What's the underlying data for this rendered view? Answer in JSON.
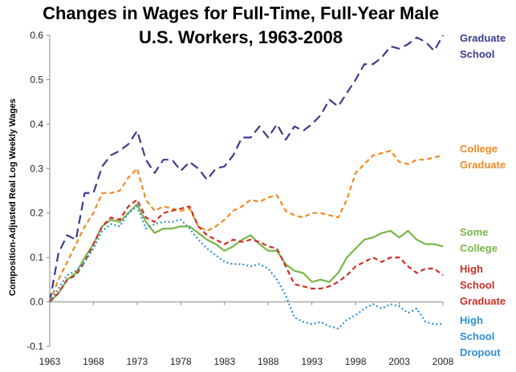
{
  "chart_data": {
    "type": "line",
    "title": "Changes in Wages for Full-Time, Full-Year Male U.S. Workers, 1963-2008",
    "title_lines": [
      "Changes in Wages for Full-Time, Full-Year Male",
      "U.S. Workers, 1963-2008"
    ],
    "xlabel": "",
    "ylabel": "Composition-Adjusted Real Log Weekly Wages",
    "xlim": [
      1963,
      2008
    ],
    "ylim": [
      -0.1,
      0.6
    ],
    "x_ticks": [
      "1963",
      "1968",
      "1973",
      "1978",
      "1983",
      "1988",
      "1993",
      "1998",
      "2003",
      "2008"
    ],
    "y_ticks": [
      "0.6",
      "0.5",
      "0.4",
      "0.3",
      "0.2",
      "0.1",
      "0.0",
      "-0.1"
    ],
    "grid": false,
    "legend_placement": "right",
    "x": [
      1963,
      1964,
      1965,
      1966,
      1967,
      1968,
      1969,
      1970,
      1971,
      1972,
      1973,
      1974,
      1975,
      1976,
      1977,
      1978,
      1979,
      1980,
      1981,
      1982,
      1983,
      1984,
      1985,
      1986,
      1987,
      1988,
      1989,
      1990,
      1991,
      1992,
      1993,
      1994,
      1995,
      1996,
      1997,
      1998,
      1999,
      2000,
      2001,
      2002,
      2003,
      2004,
      2005,
      2006,
      2007,
      2008
    ],
    "series": [
      {
        "name": "Graduate School",
        "label_lines": [
          "Graduate",
          "School"
        ],
        "color": "#3a3c8f",
        "dash": "long-dash",
        "values": [
          0.0,
          0.11,
          0.15,
          0.14,
          0.245,
          0.245,
          0.305,
          0.33,
          0.34,
          0.355,
          0.385,
          0.32,
          0.29,
          0.32,
          0.32,
          0.295,
          0.315,
          0.3,
          0.275,
          0.3,
          0.305,
          0.33,
          0.37,
          0.37,
          0.395,
          0.37,
          0.4,
          0.365,
          0.395,
          0.385,
          0.4,
          0.42,
          0.455,
          0.44,
          0.47,
          0.5,
          0.535,
          0.535,
          0.55,
          0.575,
          0.57,
          0.58,
          0.595,
          0.585,
          0.565,
          0.6
        ]
      },
      {
        "name": "College Graduate",
        "label_lines": [
          "College",
          "Graduate"
        ],
        "color": "#f08a24",
        "dash": "dash",
        "values": [
          0.0,
          0.05,
          0.09,
          0.13,
          0.17,
          0.2,
          0.245,
          0.245,
          0.25,
          0.28,
          0.3,
          0.23,
          0.205,
          0.215,
          0.21,
          0.205,
          0.21,
          0.17,
          0.16,
          0.17,
          0.185,
          0.205,
          0.215,
          0.23,
          0.225,
          0.235,
          0.24,
          0.205,
          0.195,
          0.19,
          0.2,
          0.2,
          0.195,
          0.19,
          0.23,
          0.29,
          0.31,
          0.33,
          0.335,
          0.34,
          0.315,
          0.31,
          0.32,
          0.32,
          0.325,
          0.33
        ]
      },
      {
        "name": "Some College",
        "label_lines": [
          "Some",
          "College"
        ],
        "color": "#7ab648",
        "dash": "solid",
        "values": [
          0.0,
          0.02,
          0.05,
          0.065,
          0.1,
          0.13,
          0.17,
          0.185,
          0.18,
          0.2,
          0.22,
          0.18,
          0.155,
          0.165,
          0.165,
          0.17,
          0.17,
          0.155,
          0.14,
          0.13,
          0.115,
          0.125,
          0.14,
          0.15,
          0.13,
          0.115,
          0.115,
          0.085,
          0.07,
          0.065,
          0.045,
          0.05,
          0.045,
          0.065,
          0.1,
          0.12,
          0.14,
          0.145,
          0.155,
          0.16,
          0.145,
          0.16,
          0.14,
          0.13,
          0.13,
          0.125
        ]
      },
      {
        "name": "High School Graduate",
        "label_lines": [
          "High",
          "School",
          "Graduate"
        ],
        "color": "#cc2f26",
        "dash": "dash",
        "values": [
          0.0,
          0.02,
          0.05,
          0.06,
          0.09,
          0.13,
          0.17,
          0.19,
          0.185,
          0.215,
          0.23,
          0.19,
          0.18,
          0.2,
          0.205,
          0.21,
          0.215,
          0.17,
          0.15,
          0.14,
          0.13,
          0.14,
          0.135,
          0.14,
          0.135,
          0.125,
          0.12,
          0.08,
          0.04,
          0.035,
          0.03,
          0.03,
          0.035,
          0.045,
          0.06,
          0.08,
          0.09,
          0.1,
          0.09,
          0.1,
          0.1,
          0.08,
          0.065,
          0.075,
          0.075,
          0.06
        ]
      },
      {
        "name": "High School Dropout",
        "label_lines": [
          "High",
          "School",
          "Dropout"
        ],
        "color": "#2f8fd6",
        "dash": "dotted",
        "values": [
          0.0,
          0.03,
          0.06,
          0.07,
          0.09,
          0.12,
          0.16,
          0.175,
          0.17,
          0.2,
          0.215,
          0.165,
          0.175,
          0.18,
          0.18,
          0.185,
          0.165,
          0.14,
          0.12,
          0.105,
          0.09,
          0.085,
          0.085,
          0.08,
          0.085,
          0.075,
          0.05,
          0.015,
          -0.035,
          -0.045,
          -0.05,
          -0.045,
          -0.055,
          -0.06,
          -0.04,
          -0.03,
          -0.015,
          -0.005,
          -0.015,
          -0.005,
          -0.01,
          -0.025,
          -0.015,
          -0.045,
          -0.05,
          -0.05
        ]
      }
    ]
  }
}
